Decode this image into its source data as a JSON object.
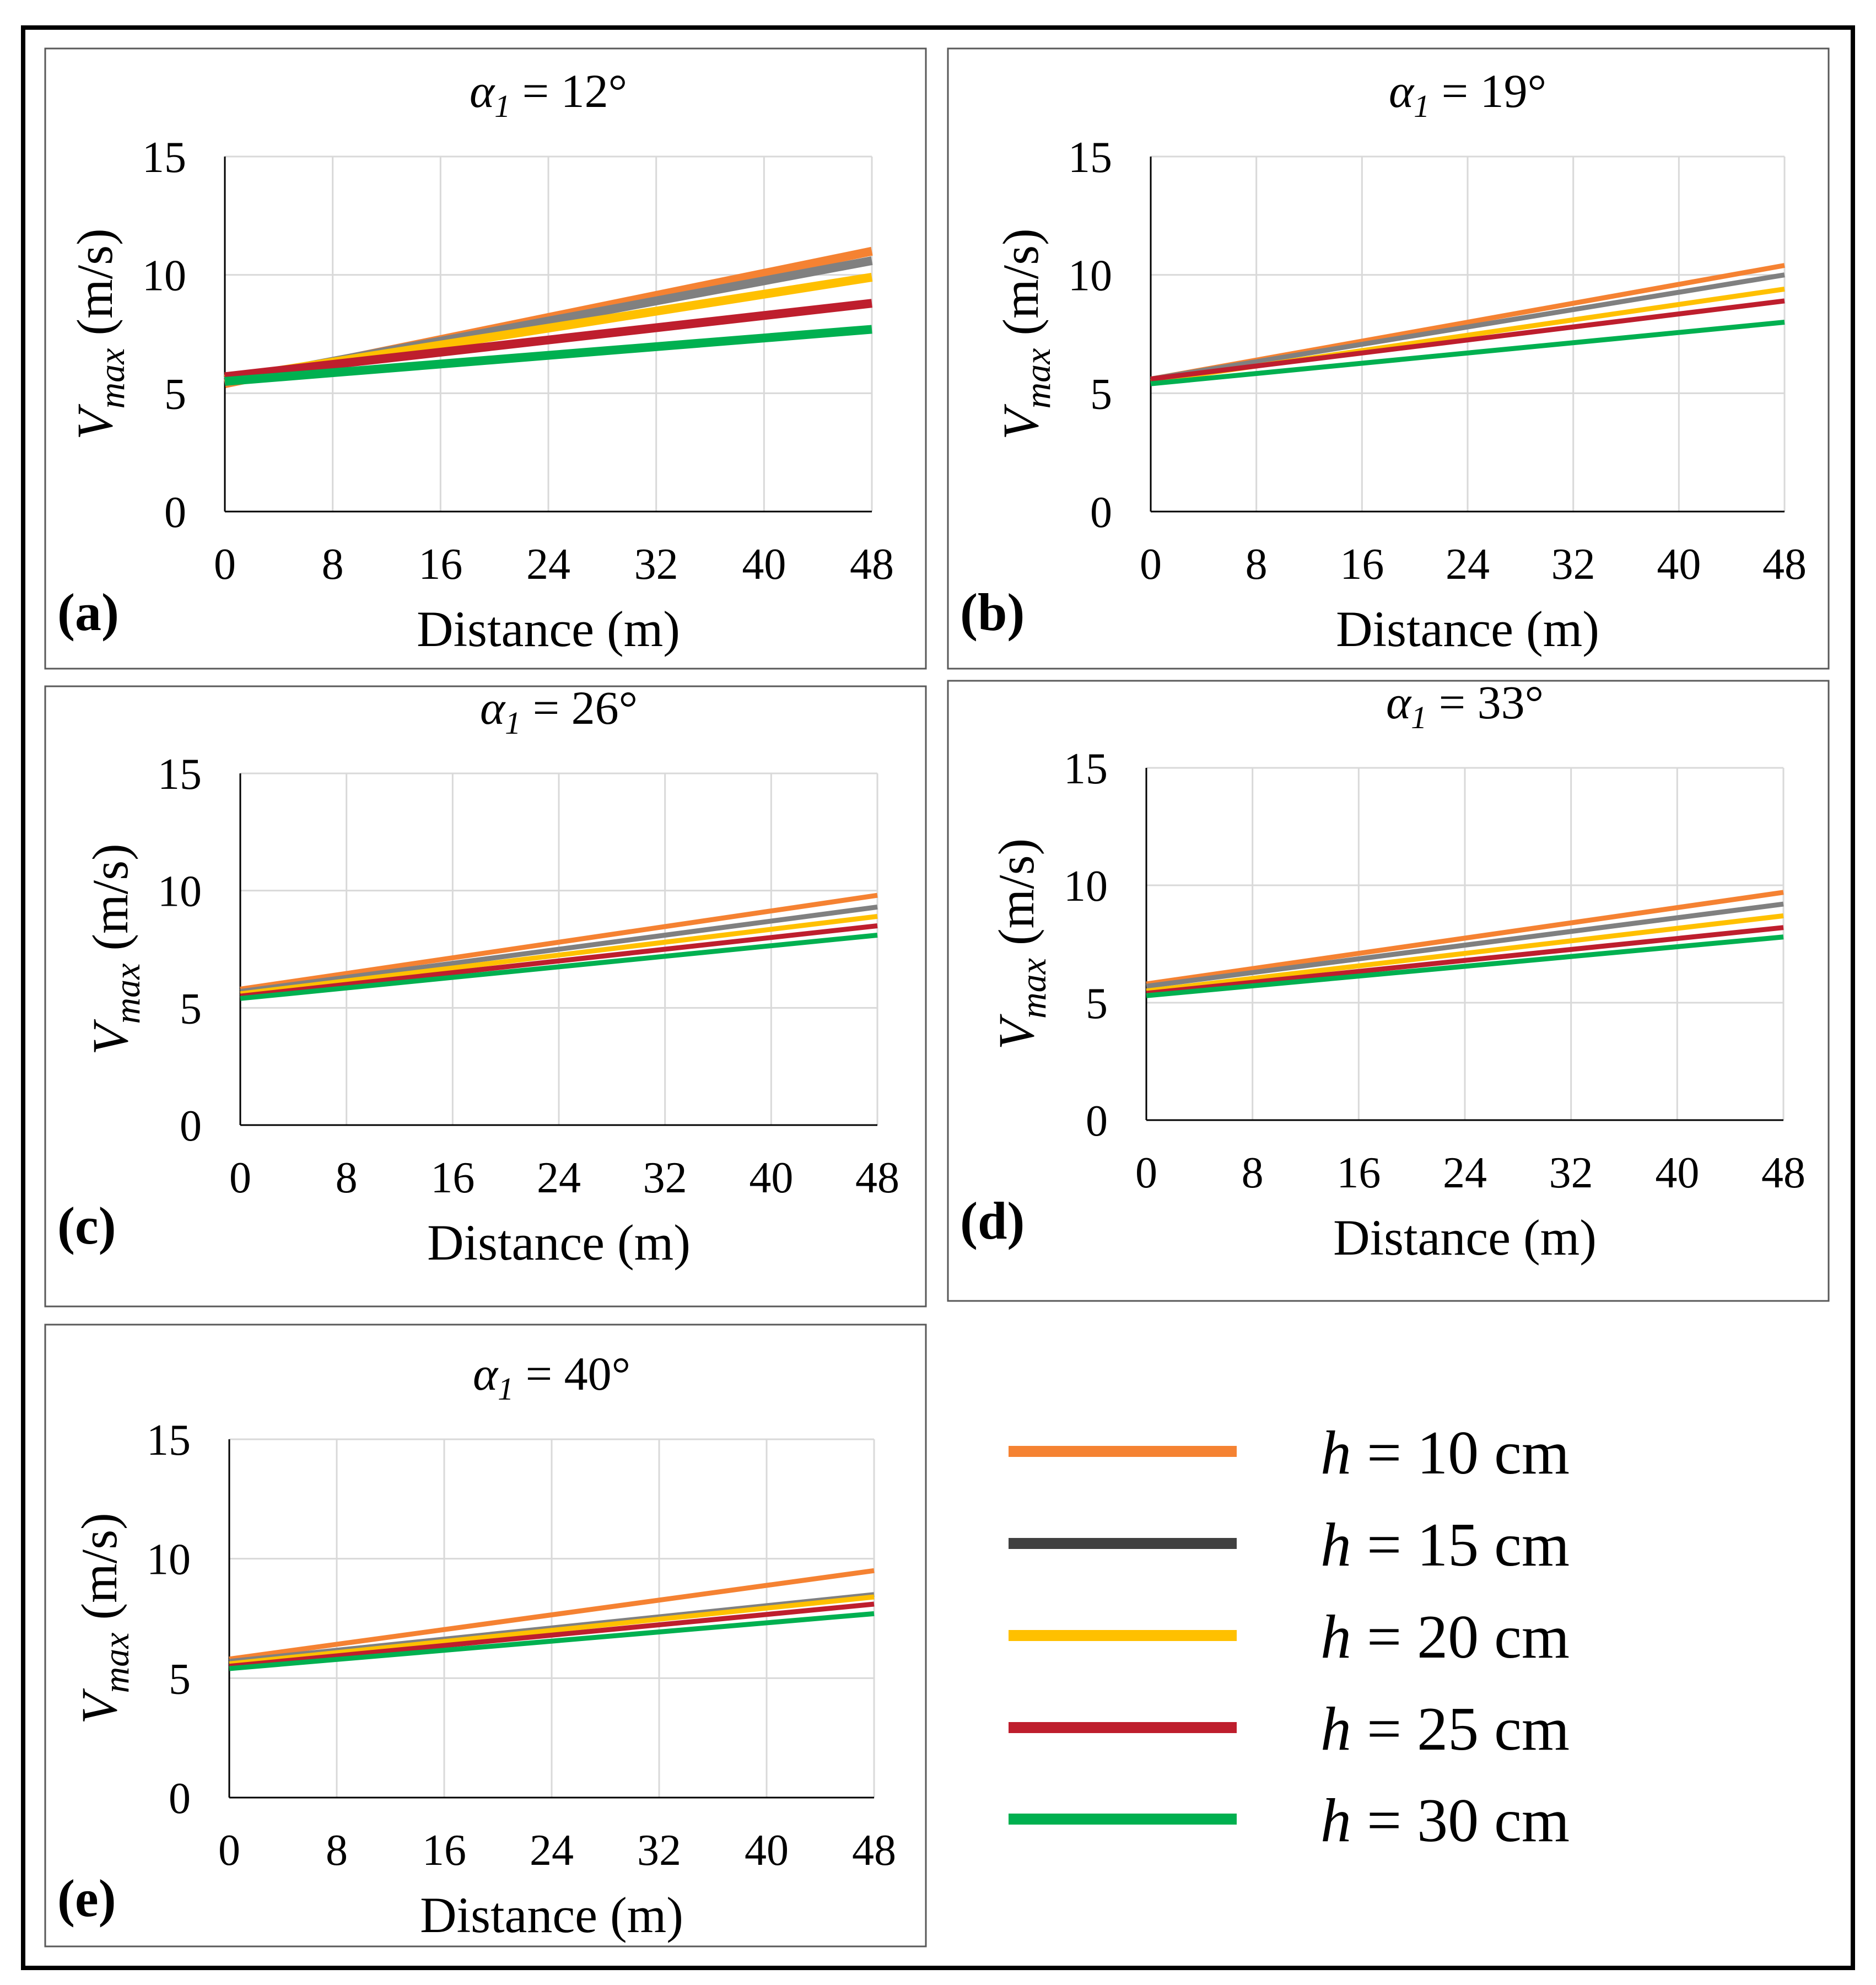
{
  "colors": {
    "h10": "#f58232",
    "h15": "#808080",
    "h20": "#ffc000",
    "h25": "#be1e2d",
    "h30": "#00b050",
    "legend_h15": "#404040",
    "grid": "#d9d9d9",
    "frame": "#000000"
  },
  "legend": [
    {
      "var": "h",
      "text": " = 10 cm",
      "series": "h10"
    },
    {
      "var": "h",
      "text": " = 15 cm",
      "series": "h15"
    },
    {
      "var": "h",
      "text": " = 20 cm",
      "series": "h20"
    },
    {
      "var": "h",
      "text": " = 25 cm",
      "series": "h25"
    },
    {
      "var": "h",
      "text": " = 30 cm",
      "series": "h30"
    }
  ],
  "chart_data": [
    {
      "type": "line",
      "panel_label": "(a)",
      "title_symbol": "α",
      "title_subscript": "1",
      "title_value": " = 12°",
      "xlabel": "Distance (m)",
      "ylabel_symbol": "V",
      "ylabel_subscript": "max",
      "ylabel_unit": " (m/s)",
      "xticks": [
        0,
        8,
        16,
        24,
        32,
        40,
        48
      ],
      "yticks": [
        0,
        5,
        10,
        15
      ],
      "xlim": [
        0,
        48
      ],
      "ylim": [
        0,
        15
      ],
      "grid": true,
      "series": [
        {
          "name": "h = 10 cm",
          "key": "h10",
          "x": [
            0,
            48
          ],
          "y": [
            5.4,
            11.0
          ]
        },
        {
          "name": "h = 15 cm",
          "key": "h15",
          "x": [
            0,
            48
          ],
          "y": [
            5.5,
            10.6
          ]
        },
        {
          "name": "h = 20 cm",
          "key": "h20",
          "x": [
            0,
            48
          ],
          "y": [
            5.6,
            9.9
          ]
        },
        {
          "name": "h = 25 cm",
          "key": "h25",
          "x": [
            0,
            48
          ],
          "y": [
            5.7,
            8.8
          ]
        },
        {
          "name": "h = 30 cm",
          "key": "h30",
          "x": [
            0,
            48
          ],
          "y": [
            5.5,
            7.7
          ]
        }
      ]
    },
    {
      "type": "line",
      "panel_label": "(b)",
      "title_symbol": "α",
      "title_subscript": "1",
      "title_value": " = 19°",
      "xlabel": "Distance (m)",
      "ylabel_symbol": "V",
      "ylabel_subscript": "max",
      "ylabel_unit": " (m/s)",
      "xticks": [
        0,
        8,
        16,
        24,
        32,
        40,
        48
      ],
      "yticks": [
        0,
        5,
        10,
        15
      ],
      "xlim": [
        0,
        48
      ],
      "ylim": [
        0,
        15
      ],
      "grid": true,
      "series": [
        {
          "name": "h = 10 cm",
          "key": "h10",
          "x": [
            0,
            48
          ],
          "y": [
            5.6,
            10.4
          ]
        },
        {
          "name": "h = 15 cm",
          "key": "h15",
          "x": [
            0,
            48
          ],
          "y": [
            5.6,
            10.0
          ]
        },
        {
          "name": "h = 20 cm",
          "key": "h20",
          "x": [
            0,
            48
          ],
          "y": [
            5.5,
            9.4
          ]
        },
        {
          "name": "h = 25 cm",
          "key": "h25",
          "x": [
            0,
            48
          ],
          "y": [
            5.6,
            8.9
          ]
        },
        {
          "name": "h = 30 cm",
          "key": "h30",
          "x": [
            0,
            48
          ],
          "y": [
            5.4,
            8.0
          ]
        }
      ]
    },
    {
      "type": "line",
      "panel_label": "(c)",
      "title_symbol": "α",
      "title_subscript": "1",
      "title_value": " = 26°",
      "xlabel": "Distance (m)",
      "ylabel_symbol": "V",
      "ylabel_subscript": "max",
      "ylabel_unit": " (m/s)",
      "xticks": [
        0,
        8,
        16,
        24,
        32,
        40,
        48
      ],
      "yticks": [
        0,
        5,
        10,
        15
      ],
      "xlim": [
        0,
        48
      ],
      "ylim": [
        0,
        15
      ],
      "grid": true,
      "series": [
        {
          "name": "h = 10 cm",
          "key": "h10",
          "x": [
            0,
            48
          ],
          "y": [
            5.8,
            9.8
          ]
        },
        {
          "name": "h = 15 cm",
          "key": "h15",
          "x": [
            0,
            48
          ],
          "y": [
            5.7,
            9.3
          ]
        },
        {
          "name": "h = 20 cm",
          "key": "h20",
          "x": [
            0,
            48
          ],
          "y": [
            5.6,
            8.9
          ]
        },
        {
          "name": "h = 25 cm",
          "key": "h25",
          "x": [
            0,
            48
          ],
          "y": [
            5.5,
            8.5
          ]
        },
        {
          "name": "h = 30 cm",
          "key": "h30",
          "x": [
            0,
            48
          ],
          "y": [
            5.4,
            8.1
          ]
        }
      ]
    },
    {
      "type": "line",
      "panel_label": "(d)",
      "title_symbol": "α",
      "title_subscript": "1",
      "title_value": " = 33°",
      "xlabel": "Distance (m)",
      "ylabel_symbol": "V",
      "ylabel_subscript": "max",
      "ylabel_unit": " (m/s)",
      "xticks": [
        0,
        8,
        16,
        24,
        32,
        40,
        48
      ],
      "yticks": [
        0,
        5,
        10,
        15
      ],
      "xlim": [
        0,
        48
      ],
      "ylim": [
        0,
        15
      ],
      "grid": true,
      "series": [
        {
          "name": "h = 10 cm",
          "key": "h10",
          "x": [
            0,
            48
          ],
          "y": [
            5.8,
            9.7
          ]
        },
        {
          "name": "h = 15 cm",
          "key": "h15",
          "x": [
            0,
            48
          ],
          "y": [
            5.7,
            9.2
          ]
        },
        {
          "name": "h = 20 cm",
          "key": "h20",
          "x": [
            0,
            48
          ],
          "y": [
            5.5,
            8.7
          ]
        },
        {
          "name": "h = 25 cm",
          "key": "h25",
          "x": [
            0,
            48
          ],
          "y": [
            5.4,
            8.2
          ]
        },
        {
          "name": "h = 30 cm",
          "key": "h30",
          "x": [
            0,
            48
          ],
          "y": [
            5.3,
            7.8
          ]
        }
      ]
    },
    {
      "type": "line",
      "panel_label": "(e)",
      "title_symbol": "α",
      "title_subscript": "1",
      "title_value": " = 40°",
      "xlabel": "Distance (m)",
      "ylabel_symbol": "V",
      "ylabel_subscript": "max",
      "ylabel_unit": " (m/s)",
      "xticks": [
        0,
        8,
        16,
        24,
        32,
        40,
        48
      ],
      "yticks": [
        0,
        5,
        10,
        15
      ],
      "xlim": [
        0,
        48
      ],
      "ylim": [
        0,
        15
      ],
      "grid": true,
      "series": [
        {
          "name": "h = 10 cm",
          "key": "h10",
          "x": [
            0,
            48
          ],
          "y": [
            5.8,
            9.5
          ]
        },
        {
          "name": "h = 15 cm",
          "key": "h15",
          "x": [
            0,
            48
          ],
          "y": [
            5.7,
            8.5
          ]
        },
        {
          "name": "h = 20 cm",
          "key": "h20",
          "x": [
            0,
            48
          ],
          "y": [
            5.6,
            8.4
          ]
        },
        {
          "name": "h = 25 cm",
          "key": "h25",
          "x": [
            0,
            48
          ],
          "y": [
            5.5,
            8.1
          ]
        },
        {
          "name": "h = 30 cm",
          "key": "h30",
          "x": [
            0,
            48
          ],
          "y": [
            5.4,
            7.7
          ]
        }
      ]
    }
  ]
}
